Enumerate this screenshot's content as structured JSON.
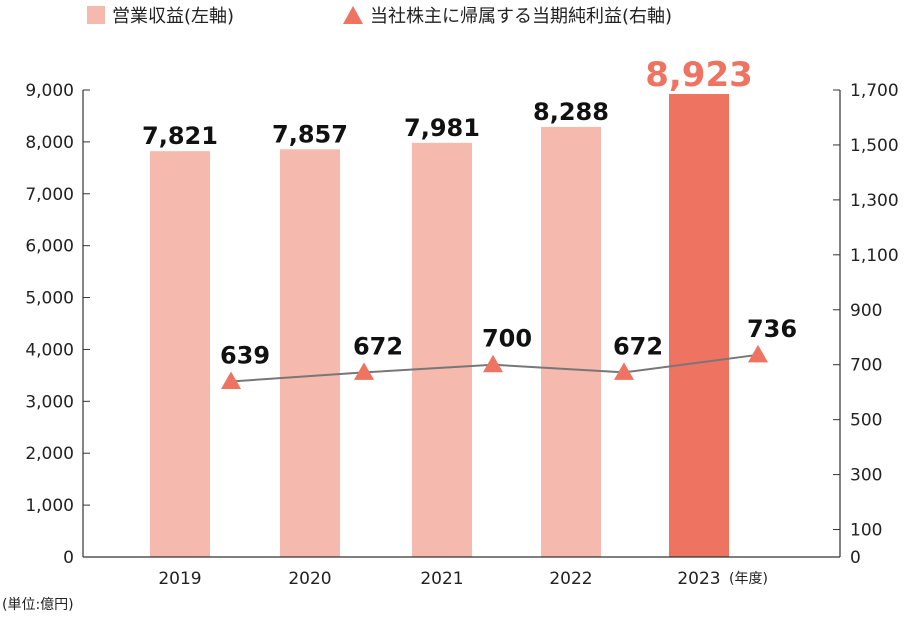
{
  "chart_data": {
    "type": "bar+line",
    "categories": [
      "2019",
      "2020",
      "2021",
      "2022",
      "2023"
    ],
    "x_suffix": "(年度)",
    "unit_note": "(単位:億円)",
    "y_left_lim": [
      0,
      9000
    ],
    "y_left_ticks": [
      "0",
      "1,000",
      "2,000",
      "3,000",
      "4,000",
      "5,000",
      "6,000",
      "7,000",
      "8,000",
      "9,000"
    ],
    "y_right_lim": [
      0,
      1700
    ],
    "y_right_ticks": [
      "0",
      "100",
      "300",
      "500",
      "700",
      "900",
      "1,100",
      "1,300",
      "1,500",
      "1,700"
    ],
    "y_right_tick_values": [
      0,
      100,
      300,
      500,
      700,
      900,
      1100,
      1300,
      1500,
      1700
    ],
    "series": [
      {
        "name": "営業収益(左軸)",
        "type": "bar",
        "axis": "left",
        "values": [
          7821,
          7857,
          7981,
          8288,
          8923
        ],
        "labels": [
          "7,821",
          "7,857",
          "7,981",
          "8,288",
          "8,923"
        ],
        "highlight_index": 4
      },
      {
        "name": "当社株主に帰属する当期純利益(右軸)",
        "type": "line",
        "axis": "right",
        "marker": "triangle",
        "values": [
          639,
          672,
          700,
          672,
          736
        ],
        "labels": [
          "639",
          "672",
          "700",
          "672",
          "736"
        ]
      }
    ],
    "colors": {
      "bar": "#f6b9ad",
      "bar_highlight": "#ee7360",
      "marker": "#ee7360",
      "line": "#777777",
      "highlight_label": "#ee7360",
      "axis": "#333333"
    },
    "legend_position": "top"
  }
}
